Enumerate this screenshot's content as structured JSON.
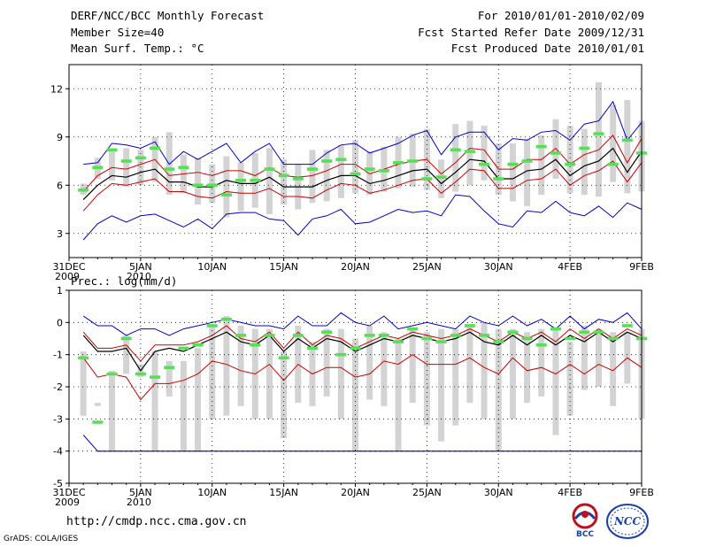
{
  "header": {
    "title": "DERF/NCC/BCC Monthly Forecast",
    "member_size": "Member Size=40",
    "variable_top": "Mean Surf. Temp.: °C",
    "period": "For 2010/01/01-2010/02/09",
    "fcst_started": "Fcst Started Refer Date 2009/12/31",
    "fcst_produced": "Fcst Produced Date 2010/01/01"
  },
  "footer": {
    "url": "http://cmdp.ncc.cma.gov.cn",
    "credit": "GrADS: COLA/IGES",
    "logo_left": "BCC",
    "logo_right": "NCC"
  },
  "colors": {
    "box": "#d3d3d3",
    "obs": "#55e055",
    "max": "#0000cc",
    "mean": "#000000",
    "min": "#cc0000"
  },
  "x_axis": {
    "ticks": [
      {
        "day": 0,
        "label": "31DEC",
        "sub": "2009"
      },
      {
        "day": 5,
        "label": "5JAN",
        "sub": "2010"
      },
      {
        "day": 10,
        "label": "10JAN",
        "sub": ""
      },
      {
        "day": 15,
        "label": "15JAN",
        "sub": ""
      },
      {
        "day": 20,
        "label": "20JAN",
        "sub": ""
      },
      {
        "day": 25,
        "label": "25JAN",
        "sub": ""
      },
      {
        "day": 30,
        "label": "30JAN",
        "sub": ""
      },
      {
        "day": 35,
        "label": "4FEB",
        "sub": ""
      },
      {
        "day": 40,
        "label": "9FEB",
        "sub": ""
      }
    ],
    "range": [
      0,
      40
    ]
  },
  "chart_data": [
    {
      "type": "box",
      "title": "Mean Surf. Temp.: °C",
      "ylim": [
        1.5,
        13.5
      ],
      "yticks": [
        3,
        6,
        9,
        12
      ],
      "days": [
        1,
        2,
        3,
        4,
        5,
        6,
        7,
        8,
        9,
        10,
        11,
        12,
        13,
        14,
        15,
        16,
        17,
        18,
        19,
        20,
        21,
        22,
        23,
        24,
        25,
        26,
        27,
        28,
        29,
        30,
        31,
        32,
        33,
        34,
        35,
        36,
        37,
        38,
        39,
        40
      ],
      "box_low": [
        5.4,
        6.4,
        6.3,
        5.9,
        6.0,
        6.2,
        5.4,
        5.5,
        4.8,
        4.9,
        4.0,
        4.4,
        4.6,
        4.2,
        4.8,
        4.5,
        4.9,
        5.0,
        5.2,
        5.5,
        5.4,
        5.6,
        5.8,
        5.9,
        5.7,
        5.2,
        5.6,
        6.0,
        6.3,
        5.4,
        5.0,
        4.7,
        5.4,
        6.4,
        5.5,
        5.4,
        5.3,
        6.2,
        5.5,
        5.6
      ],
      "box_high": [
        6.1,
        7.7,
        8.2,
        8.3,
        8.2,
        9.0,
        9.3,
        7.9,
        7.7,
        7.3,
        7.8,
        7.4,
        8.0,
        8.3,
        7.6,
        7.3,
        8.2,
        8.2,
        8.5,
        8.8,
        8.1,
        8.4,
        9.0,
        9.2,
        9.5,
        7.6,
        9.8,
        10.0,
        9.7,
        8.6,
        8.6,
        8.9,
        9.1,
        10.1,
        9.7,
        9.5,
        12.4,
        11.0,
        11.3,
        10.0
      ],
      "obs": [
        5.7,
        7.1,
        8.2,
        7.5,
        7.7,
        8.3,
        7.0,
        7.1,
        6.0,
        6.0,
        5.4,
        6.3,
        6.3,
        7.0,
        6.6,
        6.4,
        7.0,
        7.5,
        7.6,
        6.7,
        7.0,
        6.9,
        7.4,
        7.5,
        6.4,
        6.5,
        8.2,
        8.1,
        7.3,
        6.4,
        7.3,
        7.5,
        8.4,
        8.0,
        7.3,
        8.3,
        9.2,
        7.3,
        8.8,
        8.0
      ],
      "series": [
        {
          "name": "max",
          "values": [
            7.3,
            7.4,
            8.6,
            8.5,
            8.3,
            8.7,
            7.3,
            8.1,
            7.6,
            8.1,
            8.6,
            7.4,
            8.1,
            8.6,
            7.3,
            7.3,
            7.3,
            8.0,
            8.5,
            8.6,
            8.0,
            8.3,
            8.6,
            9.1,
            9.4,
            7.9,
            9.0,
            9.3,
            9.3,
            8.2,
            8.9,
            8.8,
            9.3,
            9.4,
            8.8,
            9.8,
            10.0,
            11.2,
            8.8,
            9.9
          ]
        },
        {
          "name": "ens_hi",
          "values": [
            5.6,
            6.6,
            7.1,
            7.0,
            7.3,
            7.6,
            6.6,
            6.7,
            6.8,
            6.6,
            6.9,
            6.9,
            6.6,
            7.1,
            6.6,
            6.5,
            6.6,
            6.9,
            7.3,
            7.3,
            6.7,
            7.0,
            7.3,
            7.5,
            7.6,
            6.7,
            7.4,
            8.3,
            8.2,
            7.0,
            7.0,
            7.6,
            7.6,
            8.3,
            7.3,
            7.9,
            8.2,
            9.1,
            7.4,
            8.9
          ]
        },
        {
          "name": "mean",
          "values": [
            5.1,
            6.0,
            6.6,
            6.5,
            6.8,
            7.0,
            6.2,
            6.2,
            5.9,
            5.9,
            6.3,
            6.1,
            6.1,
            6.5,
            5.9,
            5.9,
            5.9,
            6.3,
            6.6,
            6.6,
            6.1,
            6.3,
            6.6,
            6.9,
            7.0,
            6.1,
            6.8,
            7.6,
            7.5,
            6.4,
            6.4,
            6.9,
            7.0,
            7.6,
            6.6,
            7.2,
            7.5,
            8.3,
            6.8,
            8.1
          ]
        },
        {
          "name": "min",
          "values": [
            4.4,
            5.4,
            6.1,
            6.0,
            6.2,
            6.4,
            5.6,
            5.6,
            5.3,
            5.2,
            5.6,
            5.5,
            5.5,
            5.8,
            5.3,
            5.3,
            5.2,
            5.7,
            6.1,
            6.0,
            5.5,
            5.7,
            6.0,
            6.3,
            6.4,
            5.5,
            6.2,
            7.0,
            6.9,
            5.8,
            5.8,
            6.3,
            6.4,
            7.0,
            6.0,
            6.6,
            6.9,
            7.5,
            6.2,
            7.4
          ]
        },
        {
          "name": "ens_lo",
          "values": [
            2.6,
            3.6,
            4.1,
            3.7,
            4.1,
            4.2,
            3.8,
            3.4,
            3.9,
            3.3,
            4.2,
            4.3,
            4.3,
            3.9,
            3.8,
            2.9,
            3.9,
            4.1,
            4.5,
            3.6,
            3.7,
            4.1,
            4.5,
            4.3,
            4.4,
            4.1,
            5.4,
            5.3,
            4.4,
            3.6,
            3.4,
            4.4,
            4.3,
            5.0,
            4.3,
            4.1,
            4.7,
            4.0,
            4.9,
            4.5
          ]
        }
      ]
    },
    {
      "type": "box",
      "title": "Prec.: log(mm/d)",
      "ylim": [
        -5,
        1
      ],
      "yticks": [
        -5,
        -4,
        -3,
        -2,
        -1,
        0,
        1
      ],
      "days": [
        1,
        2,
        3,
        4,
        5,
        6,
        7,
        8,
        9,
        10,
        11,
        12,
        13,
        14,
        15,
        16,
        17,
        18,
        19,
        20,
        21,
        22,
        23,
        24,
        25,
        26,
        27,
        28,
        29,
        30,
        31,
        32,
        33,
        34,
        35,
        36,
        37,
        38,
        39,
        40
      ],
      "box_low": [
        -2.9,
        -2.6,
        -4.0,
        -1.6,
        -1.7,
        -4.0,
        -2.3,
        -4.0,
        -4.0,
        -3.0,
        -2.9,
        -2.6,
        -3.0,
        -3.0,
        -3.6,
        -2.5,
        -2.6,
        -2.3,
        -3.0,
        -4.0,
        -2.4,
        -2.6,
        -4.0,
        -2.5,
        -3.2,
        -3.7,
        -3.2,
        -2.5,
        -3.0,
        -4.0,
        -3.0,
        -2.5,
        -2.3,
        -3.5,
        -2.9,
        -2.1,
        -2.0,
        -2.6,
        -1.9,
        -3.0
      ],
      "box_high": [
        -0.9,
        -2.5,
        -1.5,
        -0.4,
        -1.3,
        -0.9,
        -1.2,
        -1.2,
        -0.8,
        -0.1,
        0.2,
        -0.1,
        -0.2,
        -0.2,
        -0.9,
        -0.1,
        -0.6,
        -0.2,
        -0.2,
        -0.5,
        -0.1,
        -0.3,
        -0.5,
        -0.2,
        -0.3,
        -0.2,
        -0.2,
        -0.1,
        0.0,
        -0.2,
        -0.2,
        -0.3,
        -0.2,
        -0.2,
        -0.6,
        -0.1,
        -0.2,
        -0.3,
        -0.3,
        -0.2
      ],
      "obs": [
        -1.1,
        -3.1,
        -1.6,
        -0.5,
        -1.6,
        -1.7,
        -1.4,
        -0.8,
        -0.7,
        -0.1,
        0.1,
        -0.4,
        -0.7,
        -0.4,
        -1.1,
        -0.4,
        -0.8,
        -0.3,
        -1.0,
        -0.8,
        -0.4,
        -0.4,
        -0.6,
        -0.2,
        -0.5,
        -0.6,
        -0.4,
        -0.1,
        -0.4,
        -0.6,
        -0.3,
        -0.5,
        -0.7,
        -0.2,
        -0.5,
        -0.3,
        -0.3,
        -0.5,
        -0.1,
        -0.5
      ],
      "series": [
        {
          "name": "max",
          "values": [
            0.2,
            -0.1,
            -0.1,
            -0.4,
            -0.2,
            -0.2,
            -0.4,
            -0.2,
            -0.1,
            0.0,
            0.1,
            0.0,
            -0.1,
            -0.1,
            -0.2,
            0.2,
            -0.1,
            -0.1,
            0.3,
            0.0,
            -0.1,
            0.2,
            -0.2,
            -0.1,
            0.0,
            -0.1,
            -0.2,
            0.2,
            0.0,
            -0.1,
            0.2,
            -0.1,
            0.1,
            -0.2,
            0.2,
            -0.2,
            0.1,
            0.0,
            0.3,
            -0.2
          ]
        },
        {
          "name": "ens_hi",
          "values": [
            -0.3,
            -0.8,
            -0.8,
            -0.7,
            -1.2,
            -0.7,
            -0.7,
            -0.7,
            -0.6,
            -0.4,
            -0.1,
            -0.5,
            -0.6,
            -0.3,
            -0.8,
            -0.3,
            -0.7,
            -0.4,
            -0.5,
            -0.8,
            -0.6,
            -0.4,
            -0.5,
            -0.3,
            -0.4,
            -0.5,
            -0.4,
            -0.2,
            -0.4,
            -0.6,
            -0.3,
            -0.5,
            -0.3,
            -0.6,
            -0.2,
            -0.5,
            -0.2,
            -0.5,
            -0.2,
            -0.4
          ]
        },
        {
          "name": "mean",
          "values": [
            -0.4,
            -0.9,
            -0.9,
            -0.8,
            -1.5,
            -0.9,
            -0.8,
            -0.9,
            -0.7,
            -0.5,
            -0.3,
            -0.6,
            -0.7,
            -0.4,
            -0.9,
            -0.5,
            -0.8,
            -0.5,
            -0.6,
            -0.9,
            -0.7,
            -0.5,
            -0.6,
            -0.4,
            -0.5,
            -0.6,
            -0.5,
            -0.3,
            -0.6,
            -0.7,
            -0.4,
            -0.7,
            -0.4,
            -0.7,
            -0.4,
            -0.6,
            -0.3,
            -0.6,
            -0.3,
            -0.5
          ]
        },
        {
          "name": "min",
          "values": [
            -1.1,
            -1.7,
            -1.6,
            -1.7,
            -2.4,
            -1.9,
            -1.9,
            -1.8,
            -1.6,
            -1.2,
            -1.3,
            -1.5,
            -1.6,
            -1.3,
            -1.8,
            -1.3,
            -1.6,
            -1.4,
            -1.4,
            -1.7,
            -1.6,
            -1.2,
            -1.3,
            -1.0,
            -1.3,
            -1.3,
            -1.3,
            -1.1,
            -1.4,
            -1.6,
            -1.1,
            -1.5,
            -1.4,
            -1.6,
            -1.3,
            -1.6,
            -1.3,
            -1.5,
            -1.1,
            -1.4
          ]
        },
        {
          "name": "ens_lo",
          "values": [
            -3.5,
            -4.0,
            -4.0,
            -4.0,
            -4.0,
            -4.0,
            -4.0,
            -4.0,
            -4.0,
            -4.0,
            -4.0,
            -4.0,
            -4.0,
            -4.0,
            -4.0,
            -4.0,
            -4.0,
            -4.0,
            -4.0,
            -4.0,
            -4.0,
            -4.0,
            -4.0,
            -4.0,
            -4.0,
            -4.0,
            -4.0,
            -4.0,
            -4.0,
            -4.0,
            -4.0,
            -4.0,
            -4.0,
            -4.0,
            -4.0,
            -4.0,
            -4.0,
            -4.0,
            -4.0,
            -4.0
          ]
        }
      ]
    }
  ]
}
